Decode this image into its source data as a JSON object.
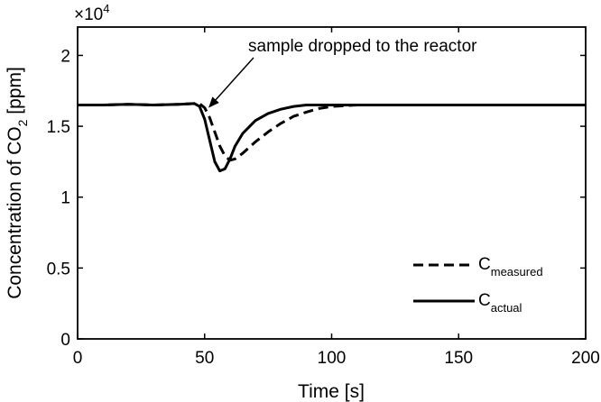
{
  "chart_data": {
    "type": "line",
    "title": "",
    "xlabel": "Time [s]",
    "ylabel_main": "Concentration of CO",
    "ylabel_sub": "2",
    "ylabel_unit": " [ppm]",
    "y_multiplier_base": "×10",
    "y_multiplier_exp": "4",
    "xlim": [
      0,
      200
    ],
    "ylim": [
      0,
      2.2
    ],
    "xticks": [
      0,
      50,
      100,
      150,
      200
    ],
    "xtick_labels": [
      "0",
      "50",
      "100",
      "150",
      "200"
    ],
    "yticks": [
      0,
      0.5,
      1,
      1.5,
      2
    ],
    "ytick_labels": [
      "0",
      "0.5",
      "1",
      "1.5",
      "2"
    ],
    "grid": false,
    "legend_position": "bottom-right",
    "annotation": {
      "text": "sample dropped to the reactor",
      "arrow_target": [
        52,
        1.64
      ]
    },
    "series": [
      {
        "name_main": "C",
        "name_sub": "measured",
        "style": "dashed",
        "x": [
          0,
          10,
          20,
          30,
          40,
          46,
          48,
          50,
          52,
          54,
          56,
          58,
          60,
          62,
          65,
          70,
          75,
          80,
          85,
          90,
          95,
          100,
          110,
          120,
          140,
          160,
          180,
          200
        ],
        "y": [
          1.65,
          1.65,
          1.655,
          1.65,
          1.655,
          1.66,
          1.66,
          1.63,
          1.56,
          1.46,
          1.36,
          1.29,
          1.26,
          1.27,
          1.31,
          1.39,
          1.46,
          1.52,
          1.57,
          1.6,
          1.625,
          1.64,
          1.65,
          1.65,
          1.65,
          1.65,
          1.65,
          1.65
        ]
      },
      {
        "name_main": "C",
        "name_sub": "actual",
        "style": "solid",
        "x": [
          0,
          10,
          20,
          30,
          40,
          46,
          48,
          50,
          52,
          54,
          56,
          58,
          60,
          62,
          65,
          70,
          75,
          80,
          85,
          90,
          95,
          100,
          110,
          120,
          140,
          160,
          180,
          200
        ],
        "y": [
          1.65,
          1.65,
          1.655,
          1.65,
          1.655,
          1.66,
          1.64,
          1.55,
          1.4,
          1.25,
          1.185,
          1.2,
          1.27,
          1.36,
          1.45,
          1.54,
          1.59,
          1.62,
          1.64,
          1.65,
          1.65,
          1.65,
          1.65,
          1.65,
          1.65,
          1.65,
          1.65,
          1.65
        ]
      }
    ]
  }
}
